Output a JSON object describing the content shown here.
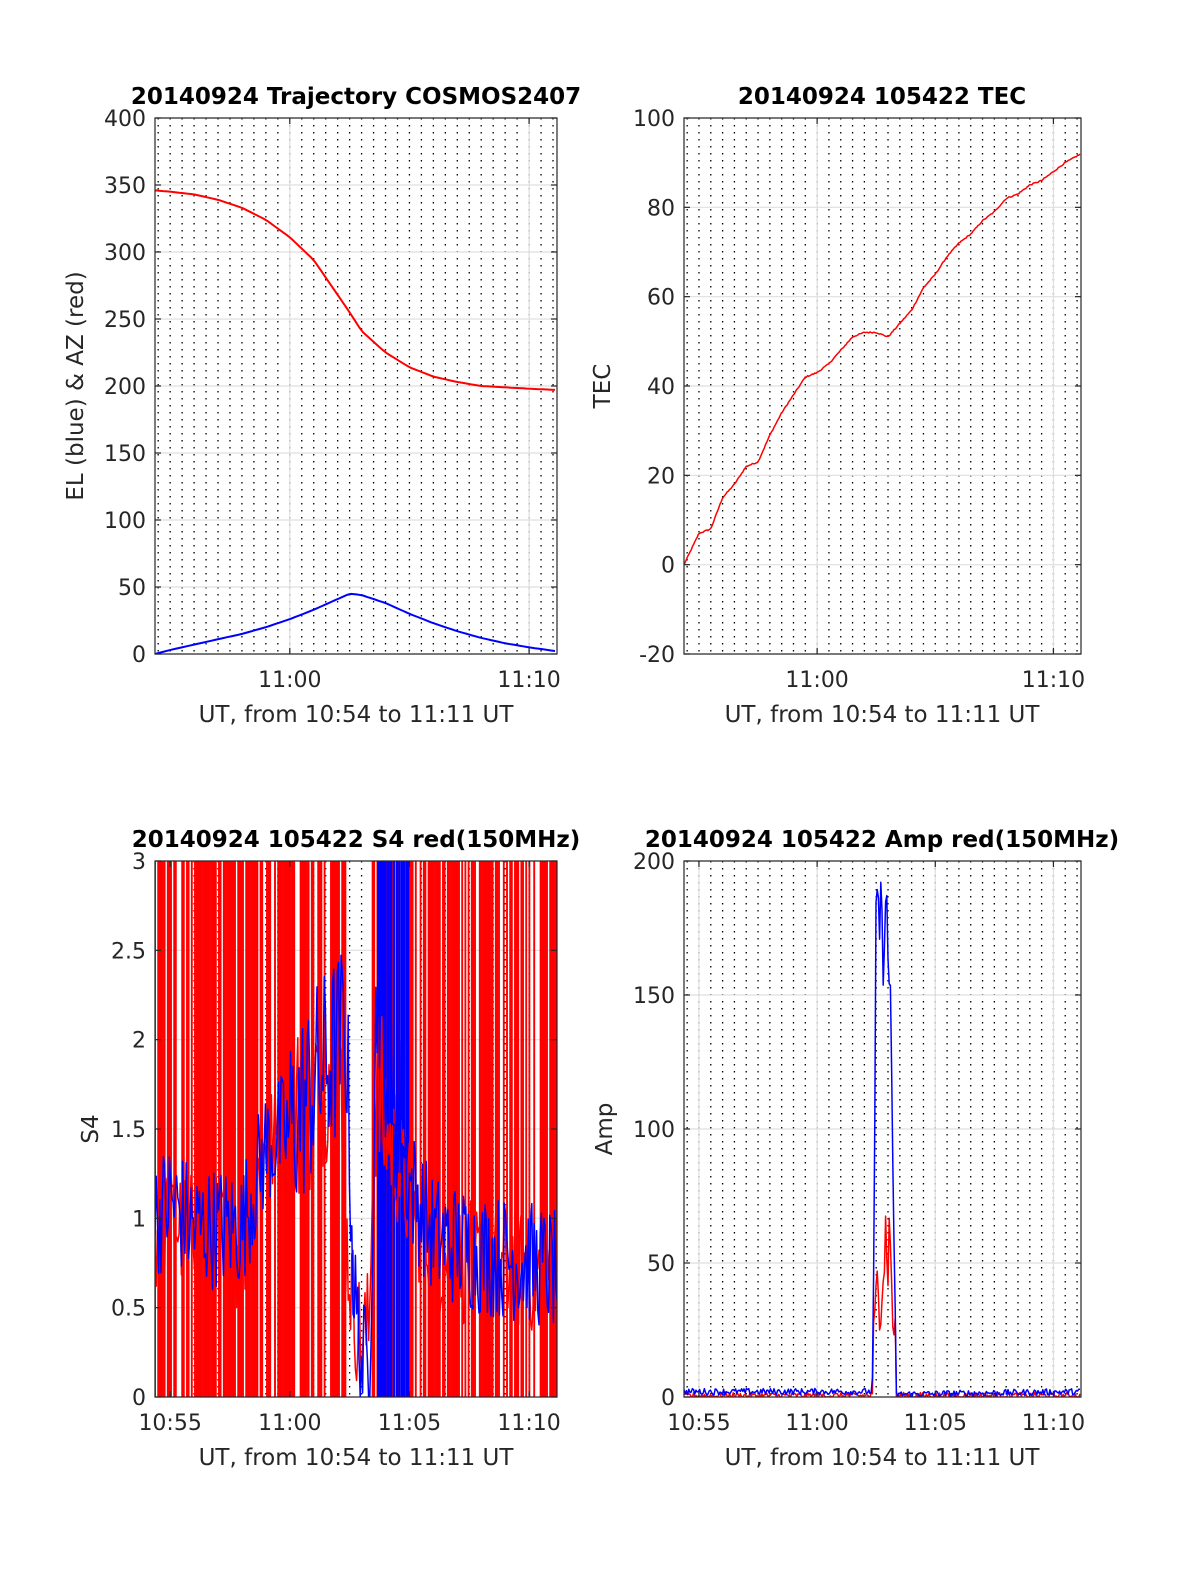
{
  "chart_data": [
    {
      "type": "line",
      "title": "20140924 Trajectory COSMOS2407",
      "xlabel": "UT, from 10:54 to 11:11 UT",
      "ylabel": "EL (blue) & AZ (red)",
      "xlim": [
        "10:54:22",
        "11:11:10"
      ],
      "ylim": [
        0,
        400
      ],
      "yticks": [
        0,
        50,
        100,
        150,
        200,
        250,
        300,
        350,
        400
      ],
      "xticks": [
        {
          "t": "11:00",
          "label": "11:00"
        },
        {
          "t": "11:10",
          "label": "11:10"
        }
      ],
      "grid": "on",
      "minor_grid": "dotted, 30 s spacing",
      "series": [
        {
          "color": "#ff0000",
          "x": [
            "10:54:22",
            "10:55:00",
            "10:56:00",
            "10:57:00",
            "10:58:00",
            "10:59:00",
            "11:00:00",
            "11:01:00",
            "11:02:00",
            "11:02:30",
            "11:03:00",
            "11:04:00",
            "11:05:00",
            "11:06:00",
            "11:07:00",
            "11:08:00",
            "11:09:00",
            "11:10:00",
            "11:11:10"
          ],
          "y": [
            346,
            345,
            343,
            339,
            333,
            324,
            311,
            294,
            268,
            255,
            241,
            225,
            214,
            207,
            203,
            200,
            199,
            198,
            197
          ]
        },
        {
          "color": "#0000ff",
          "x": [
            "10:54:22",
            "10:55:00",
            "10:56:00",
            "10:57:00",
            "10:58:00",
            "10:59:00",
            "11:00:00",
            "11:01:00",
            "11:02:00",
            "11:02:30",
            "11:03:00",
            "11:04:00",
            "11:05:00",
            "11:06:00",
            "11:07:00",
            "11:08:00",
            "11:09:00",
            "11:10:00",
            "11:11:10"
          ],
          "y": [
            0,
            3,
            7,
            11,
            15,
            20,
            26,
            33,
            41,
            45,
            44,
            38,
            30,
            23,
            17,
            12,
            8,
            5,
            2
          ]
        }
      ]
    },
    {
      "type": "line",
      "title": "20140924 105422 TEC",
      "xlabel": "UT, from 10:54 to 11:11 UT",
      "ylabel": "TEC",
      "xlim": [
        "10:54:22",
        "11:11:10"
      ],
      "ylim": [
        -20,
        100
      ],
      "yticks": [
        -20,
        0,
        20,
        40,
        60,
        80,
        100
      ],
      "xticks": [
        {
          "t": "11:00",
          "label": "11:00"
        },
        {
          "t": "11:10",
          "label": "11:10"
        }
      ],
      "grid": "on",
      "minor_grid": "dotted, 30 s spacing",
      "series": [
        {
          "color": "#ff0000",
          "x": [
            "10:54:22",
            "10:55:00",
            "10:55:30",
            "10:56:00",
            "10:56:30",
            "10:57:00",
            "10:57:30",
            "10:58:00",
            "10:58:30",
            "10:59:00",
            "10:59:30",
            "11:00:00",
            "11:00:30",
            "11:01:00",
            "11:01:30",
            "11:02:00",
            "11:02:30",
            "11:03:00",
            "11:03:30",
            "11:04:00",
            "11:04:30",
            "11:05:00",
            "11:05:30",
            "11:06:00",
            "11:06:30",
            "11:07:00",
            "11:07:30",
            "11:08:00",
            "11:08:30",
            "11:09:00",
            "11:09:30",
            "11:10:00",
            "11:10:30",
            "11:11:10"
          ],
          "y": [
            0,
            7,
            8,
            15,
            18,
            22,
            23,
            29,
            34,
            38,
            42,
            43,
            45,
            48,
            51,
            52,
            52,
            51,
            54,
            57,
            62,
            65,
            69,
            72,
            74,
            77,
            79,
            82,
            83,
            85,
            86,
            88,
            90,
            92
          ]
        }
      ]
    },
    {
      "type": "line",
      "title": "20140924 105422 S4 red(150MHz)",
      "xlabel": "UT, from 10:54 to 11:11 UT",
      "ylabel": "S4",
      "xlim": [
        "10:54:22",
        "11:11:10"
      ],
      "ylim": [
        0,
        3
      ],
      "yticks": [
        0,
        0.5,
        1,
        1.5,
        2,
        2.5,
        3
      ],
      "ytick_labels": [
        "0",
        "0.5",
        "1",
        "1.5",
        "2",
        "2.5",
        "3"
      ],
      "xticks": [
        {
          "t": "10:55",
          "label": "10:55"
        },
        {
          "t": "11:00",
          "label": "11:00"
        },
        {
          "t": "11:05",
          "label": "11:05"
        },
        {
          "t": "11:10",
          "label": "11:10"
        }
      ],
      "grid": "on",
      "minor_grid": "dotted, 30 s spacing",
      "series": [
        {
          "color": "#ff0000",
          "x": [
            "10:54:22",
            "10:55:00",
            "10:56:00",
            "10:57:00",
            "10:58:00",
            "10:59:00",
            "11:00:00",
            "11:01:00",
            "11:02:00",
            "11:02:20",
            "11:02:40",
            "11:03:00",
            "11:03:20",
            "11:03:30",
            "11:04:00",
            "11:05:00",
            "11:06:00",
            "11:07:00",
            "11:08:00",
            "11:09:00",
            "11:10:00",
            "11:11:10"
          ],
          "y": [
            0.9,
            1.0,
            0.9,
            0.9,
            0.8,
            1.4,
            1.5,
            1.7,
            2.0,
            0.9,
            0.5,
            0.3,
            0.4,
            1.8,
            1.5,
            1.1,
            0.8,
            0.75,
            0.75,
            0.72,
            0.7,
            0.7
          ]
        },
        {
          "color": "#0000ff",
          "x": [
            "10:54:22",
            "10:55:00",
            "10:56:00",
            "10:57:00",
            "10:58:00",
            "10:59:00",
            "11:00:00",
            "11:01:00",
            "11:02:00",
            "11:02:20",
            "11:02:40",
            "11:03:00",
            "11:03:20",
            "11:03:40",
            "11:04:00",
            "11:05:00",
            "11:06:00",
            "11:07:00",
            "11:08:00",
            "11:09:00",
            "11:10:00",
            "11:11:10"
          ],
          "y": [
            1.0,
            1.1,
            0.95,
            0.95,
            0.95,
            1.4,
            1.5,
            1.75,
            1.95,
            2.1,
            0.6,
            0.2,
            0.17,
            2.5,
            2.0,
            1.2,
            0.9,
            0.85,
            0.8,
            0.78,
            0.75,
            0.7
          ]
        }
      ]
    },
    {
      "type": "line",
      "title": "20140924 105422 Amp red(150MHz)",
      "xlabel": "UT, from 10:54 to 11:11 UT",
      "ylabel": "Amp",
      "xlim": [
        "10:54:22",
        "11:11:10"
      ],
      "ylim": [
        0,
        200
      ],
      "yticks": [
        0,
        50,
        100,
        150,
        200
      ],
      "xticks": [
        {
          "t": "10:55",
          "label": "10:55"
        },
        {
          "t": "11:00",
          "label": "11:00"
        },
        {
          "t": "11:05",
          "label": "11:05"
        },
        {
          "t": "11:10",
          "label": "11:10"
        }
      ],
      "grid": "on",
      "minor_grid": "dotted, 30 s spacing",
      "series": [
        {
          "color": "#ff0000",
          "x": [
            "10:54:22",
            "11:02:20",
            "11:02:25",
            "11:02:35",
            "11:02:45",
            "11:02:55",
            "11:03:05",
            "11:03:15",
            "11:03:20",
            "11:11:10"
          ],
          "y": [
            0.5,
            0.5,
            15,
            45,
            50,
            60,
            55,
            30,
            0.5,
            0.5
          ]
        },
        {
          "color": "#0000ff",
          "x": [
            "10:54:22",
            "11:02:20",
            "11:02:25",
            "11:02:30",
            "11:02:38",
            "11:02:45",
            "11:02:52",
            "11:03:00",
            "11:03:08",
            "11:03:15",
            "11:03:20",
            "11:11:10"
          ],
          "y": [
            2,
            2,
            60,
            175,
            183,
            165,
            190,
            160,
            150,
            40,
            1,
            2
          ]
        }
      ]
    }
  ]
}
